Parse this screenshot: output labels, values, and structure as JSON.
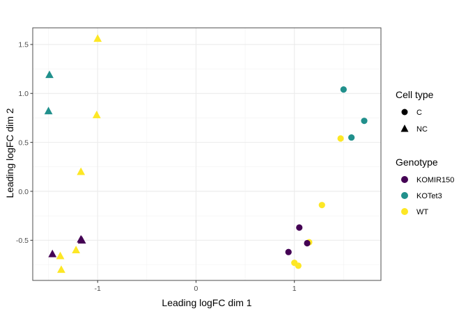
{
  "chart_data": {
    "type": "scatter",
    "title": "",
    "xlabel": "Leading logFC dim 1",
    "ylabel": "Leading logFC dim 2",
    "xlim": [
      -1.66,
      1.88
    ],
    "ylim": [
      -0.91,
      1.67
    ],
    "x_ticks": [
      -1,
      0,
      1
    ],
    "x_tick_labels": [
      "-1",
      "0",
      "1"
    ],
    "y_ticks": [
      -0.5,
      0.0,
      0.5,
      1.0,
      1.5
    ],
    "y_tick_labels": [
      "-0.5",
      "0.0",
      "0.5",
      "1.0",
      "1.5"
    ],
    "grid": true,
    "legend_position": "right",
    "shape_legend": {
      "title": "Cell type",
      "items": [
        {
          "label": "C",
          "shape": "circle"
        },
        {
          "label": "NC",
          "shape": "triangle"
        }
      ]
    },
    "color_legend": {
      "title": "Genotype",
      "items": [
        {
          "label": "KOMIR150",
          "color": "#440154"
        },
        {
          "label": "KOTet3",
          "color": "#21908C"
        },
        {
          "label": "WT",
          "color": "#FDE725"
        }
      ]
    },
    "points": [
      {
        "x": -1.49,
        "y": 1.19,
        "cell_type": "NC",
        "genotype": "KOTet3"
      },
      {
        "x": -1.5,
        "y": 0.82,
        "cell_type": "NC",
        "genotype": "KOTet3"
      },
      {
        "x": -1.0,
        "y": 1.56,
        "cell_type": "NC",
        "genotype": "WT"
      },
      {
        "x": -1.01,
        "y": 0.78,
        "cell_type": "NC",
        "genotype": "WT"
      },
      {
        "x": -1.17,
        "y": 0.2,
        "cell_type": "NC",
        "genotype": "WT"
      },
      {
        "x": -1.22,
        "y": -0.6,
        "cell_type": "NC",
        "genotype": "WT"
      },
      {
        "x": -1.38,
        "y": -0.66,
        "cell_type": "NC",
        "genotype": "WT"
      },
      {
        "x": -1.37,
        "y": -0.8,
        "cell_type": "NC",
        "genotype": "WT"
      },
      {
        "x": -1.17,
        "y": -0.49,
        "cell_type": "NC",
        "genotype": "KOMIR150"
      },
      {
        "x": -1.16,
        "y": -0.5,
        "cell_type": "NC",
        "genotype": "KOMIR150"
      },
      {
        "x": -1.46,
        "y": -0.64,
        "cell_type": "NC",
        "genotype": "KOMIR150"
      },
      {
        "x": 1.5,
        "y": 1.04,
        "cell_type": "C",
        "genotype": "KOTet3"
      },
      {
        "x": 1.71,
        "y": 0.72,
        "cell_type": "C",
        "genotype": "KOTet3"
      },
      {
        "x": 1.58,
        "y": 0.55,
        "cell_type": "C",
        "genotype": "KOTet3"
      },
      {
        "x": 1.47,
        "y": 0.54,
        "cell_type": "C",
        "genotype": "WT"
      },
      {
        "x": 1.28,
        "y": -0.14,
        "cell_type": "C",
        "genotype": "WT"
      },
      {
        "x": 1.15,
        "y": -0.52,
        "cell_type": "C",
        "genotype": "WT"
      },
      {
        "x": 1.0,
        "y": -0.73,
        "cell_type": "C",
        "genotype": "WT"
      },
      {
        "x": 1.04,
        "y": -0.76,
        "cell_type": "C",
        "genotype": "WT"
      },
      {
        "x": 1.05,
        "y": -0.37,
        "cell_type": "C",
        "genotype": "KOMIR150"
      },
      {
        "x": 1.13,
        "y": -0.53,
        "cell_type": "C",
        "genotype": "KOMIR150"
      },
      {
        "x": 0.94,
        "y": -0.62,
        "cell_type": "C",
        "genotype": "KOMIR150"
      }
    ]
  }
}
